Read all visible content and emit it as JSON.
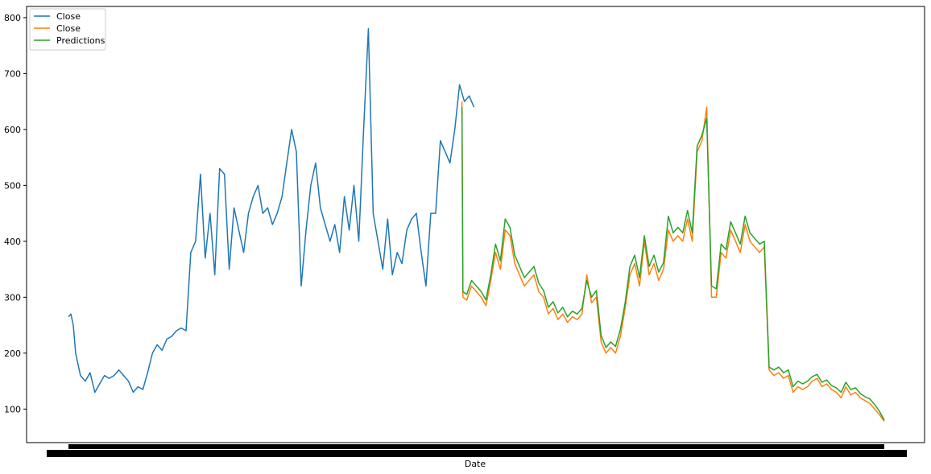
{
  "chart_data": {
    "type": "line",
    "title": "",
    "xlabel": "Date",
    "ylabel": "",
    "ylim": [
      40,
      820
    ],
    "yticks": [
      100,
      200,
      300,
      400,
      500,
      600,
      700,
      800
    ],
    "x_count": 1700,
    "x_tick_labels_overlapping": true,
    "grid": false,
    "legend_position": "top-left",
    "series": [
      {
        "name": "Close",
        "color": "#1f77b4",
        "x": [
          0,
          5,
          10,
          15,
          25,
          35,
          45,
          55,
          65,
          75,
          85,
          95,
          105,
          115,
          125,
          135,
          145,
          155,
          165,
          175,
          185,
          195,
          205,
          215,
          225,
          235,
          245,
          255,
          265,
          275,
          285,
          295,
          305,
          315,
          325,
          335,
          345,
          355,
          365,
          375,
          385,
          395,
          405,
          415,
          425,
          435,
          445,
          455,
          465,
          475,
          485,
          495,
          505,
          515,
          525,
          535,
          545,
          555,
          565,
          575,
          585,
          595,
          605,
          615,
          625,
          635,
          645,
          655,
          665,
          675,
          685,
          695,
          705,
          715,
          725,
          735,
          745,
          755,
          765,
          775,
          785,
          795,
          805,
          815,
          825,
          835,
          845
        ],
        "y": [
          265,
          270,
          250,
          200,
          160,
          150,
          165,
          130,
          145,
          160,
          155,
          160,
          170,
          160,
          150,
          130,
          140,
          135,
          165,
          200,
          215,
          205,
          225,
          230,
          240,
          245,
          240,
          380,
          400,
          520,
          370,
          450,
          340,
          530,
          520,
          350,
          460,
          420,
          380,
          450,
          480,
          500,
          450,
          460,
          430,
          450,
          480,
          540,
          600,
          560,
          320,
          420,
          500,
          540,
          460,
          430,
          400,
          430,
          380,
          480,
          420,
          500,
          400,
          600,
          780,
          450,
          400,
          350,
          440,
          340,
          380,
          360,
          420,
          440,
          450,
          380,
          320,
          450,
          450,
          580,
          560,
          540,
          600,
          680,
          650,
          660,
          640
        ]
      },
      {
        "name": "Close",
        "color": "#ff7f0e",
        "x": [
          820,
          822,
          830,
          840,
          850,
          860,
          870,
          880,
          890,
          900,
          910,
          920,
          930,
          940,
          950,
          960,
          970,
          980,
          990,
          1000,
          1010,
          1020,
          1030,
          1040,
          1050,
          1060,
          1070,
          1080,
          1090,
          1100,
          1110,
          1120,
          1130,
          1140,
          1150,
          1160,
          1170,
          1180,
          1190,
          1200,
          1210,
          1220,
          1230,
          1240,
          1250,
          1260,
          1270,
          1280,
          1290,
          1300,
          1310,
          1320,
          1330,
          1340,
          1350,
          1360,
          1370,
          1380,
          1390,
          1400,
          1410,
          1420,
          1430,
          1440,
          1450,
          1460,
          1470,
          1480,
          1490,
          1500,
          1510,
          1520,
          1530,
          1540,
          1550,
          1560,
          1570,
          1580,
          1590,
          1600,
          1610,
          1620,
          1630,
          1640,
          1650,
          1660,
          1670,
          1680,
          1690,
          1700
        ],
        "y": [
          650,
          300,
          295,
          320,
          310,
          300,
          285,
          330,
          380,
          350,
          420,
          410,
          360,
          340,
          320,
          330,
          340,
          310,
          300,
          270,
          280,
          260,
          270,
          255,
          265,
          260,
          270,
          340,
          290,
          300,
          220,
          200,
          210,
          200,
          230,
          280,
          340,
          360,
          320,
          400,
          340,
          360,
          330,
          350,
          420,
          400,
          410,
          400,
          440,
          400,
          560,
          580,
          640,
          300,
          300,
          380,
          370,
          420,
          400,
          380,
          430,
          400,
          390,
          380,
          390,
          170,
          160,
          165,
          155,
          160,
          130,
          140,
          135,
          140,
          150,
          155,
          140,
          145,
          135,
          130,
          120,
          140,
          125,
          130,
          120,
          115,
          110,
          100,
          90,
          78
        ]
      },
      {
        "name": "Predictions",
        "color": "#2ca02c",
        "x": [
          820,
          822,
          830,
          840,
          850,
          860,
          870,
          880,
          890,
          900,
          910,
          920,
          930,
          940,
          950,
          960,
          970,
          980,
          990,
          1000,
          1010,
          1020,
          1030,
          1040,
          1050,
          1060,
          1070,
          1080,
          1090,
          1100,
          1110,
          1120,
          1130,
          1140,
          1150,
          1160,
          1170,
          1180,
          1190,
          1200,
          1210,
          1220,
          1230,
          1240,
          1250,
          1260,
          1270,
          1280,
          1290,
          1300,
          1310,
          1320,
          1330,
          1340,
          1350,
          1360,
          1370,
          1380,
          1390,
          1400,
          1410,
          1420,
          1430,
          1440,
          1450,
          1460,
          1470,
          1480,
          1490,
          1500,
          1510,
          1520,
          1530,
          1540,
          1550,
          1560,
          1570,
          1580,
          1590,
          1600,
          1610,
          1620,
          1630,
          1640,
          1650,
          1660,
          1670,
          1680,
          1690,
          1700
        ],
        "y": [
          640,
          310,
          305,
          330,
          320,
          310,
          295,
          340,
          395,
          365,
          440,
          425,
          375,
          355,
          335,
          345,
          355,
          325,
          312,
          282,
          292,
          272,
          282,
          265,
          275,
          270,
          280,
          330,
          300,
          312,
          232,
          210,
          220,
          212,
          242,
          290,
          355,
          375,
          335,
          410,
          355,
          375,
          345,
          362,
          445,
          415,
          425,
          415,
          455,
          415,
          570,
          590,
          620,
          320,
          315,
          395,
          385,
          435,
          415,
          395,
          445,
          415,
          405,
          395,
          400,
          175,
          170,
          175,
          165,
          170,
          140,
          150,
          145,
          150,
          158,
          162,
          148,
          152,
          142,
          138,
          130,
          148,
          135,
          138,
          128,
          122,
          118,
          108,
          96,
          80
        ]
      }
    ]
  }
}
